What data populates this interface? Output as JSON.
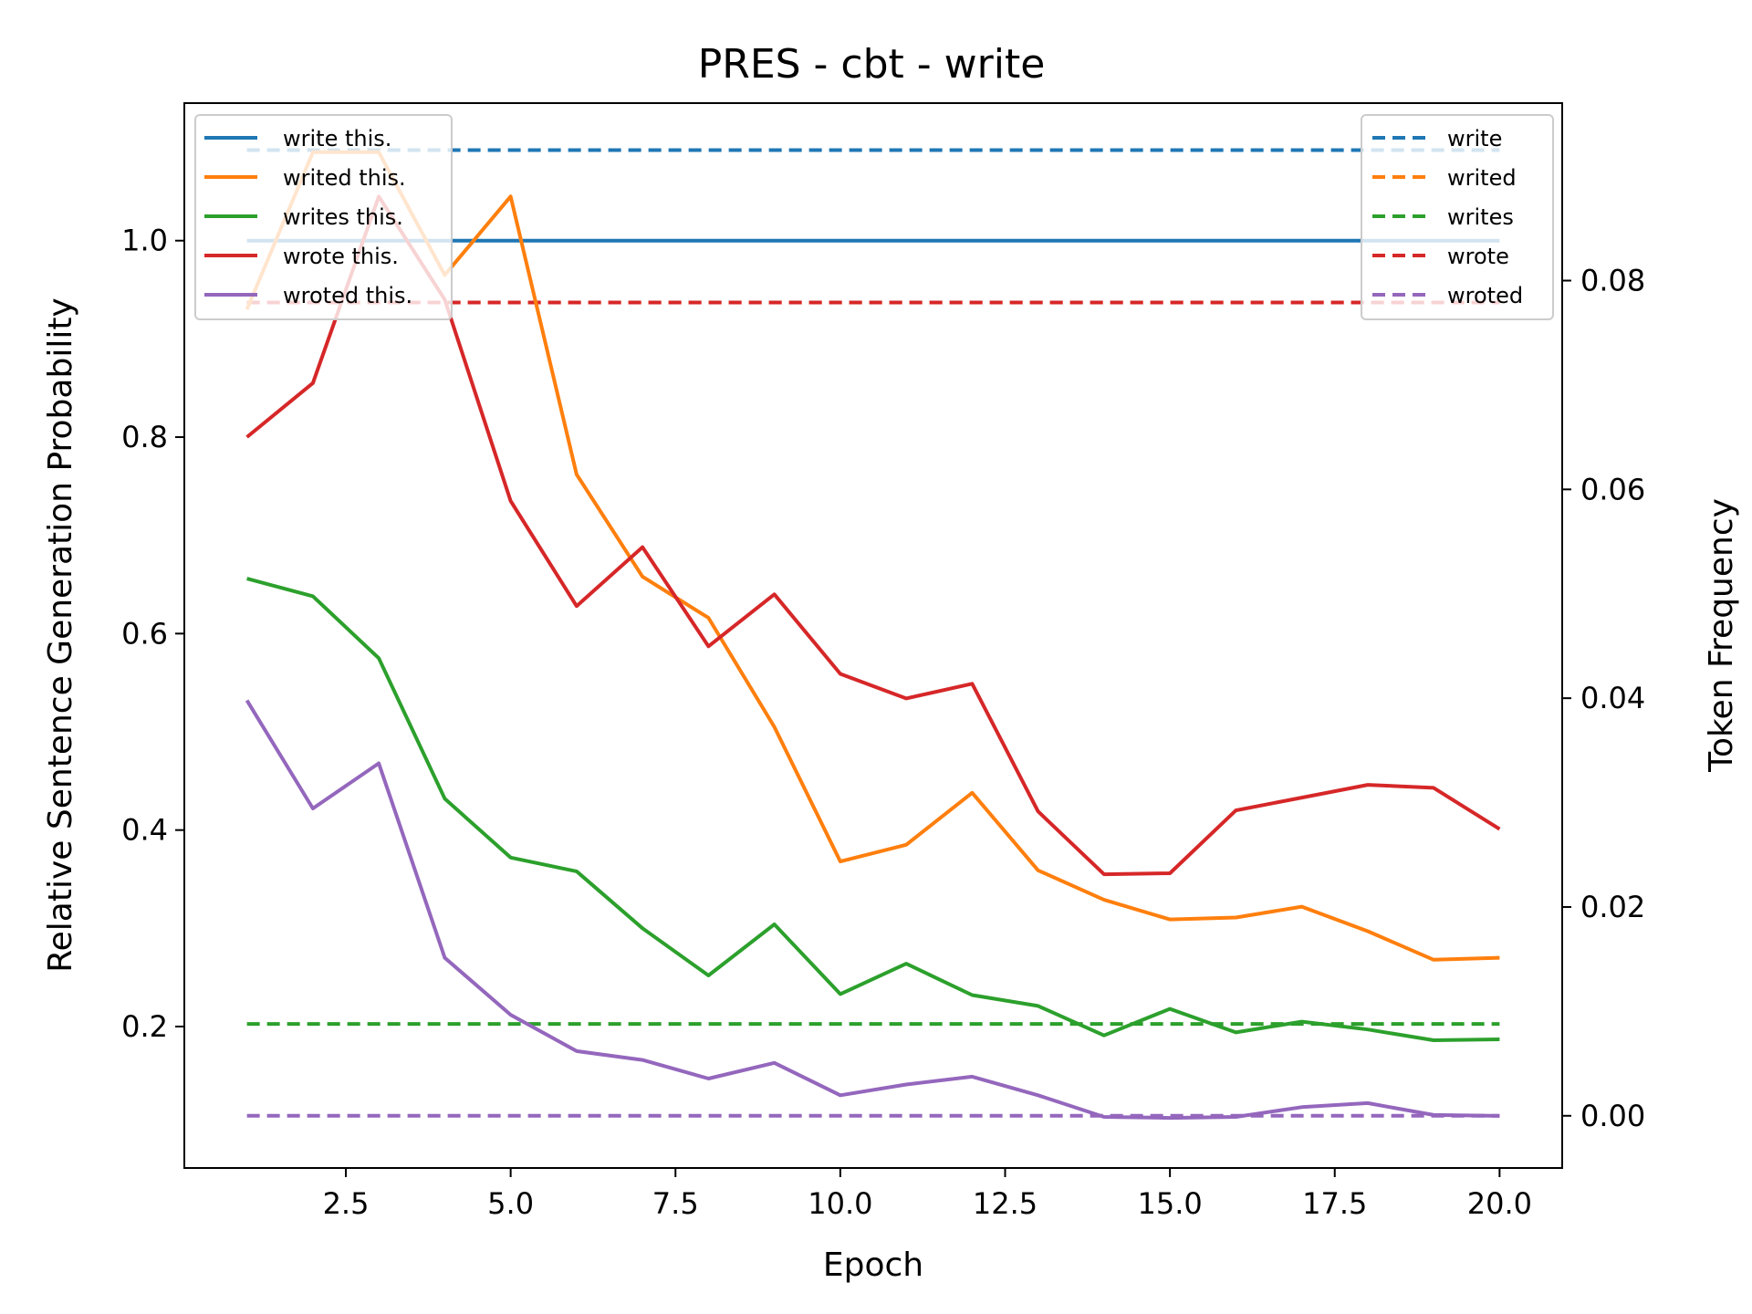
{
  "chart_data": {
    "type": "line",
    "title": "PRES - cbt - write",
    "xlabel": "Epoch",
    "ylabel": "Relative Sentence Generation Probability",
    "y2label": "Token Frequency",
    "xlim": [
      0.05,
      20.95
    ],
    "ylim": [
      0.056,
      1.14
    ],
    "y2lim": [
      -0.005,
      0.097
    ],
    "xticks": [
      {
        "v": 2.5,
        "label": "2.5"
      },
      {
        "v": 5.0,
        "label": "5.0"
      },
      {
        "v": 7.5,
        "label": "7.5"
      },
      {
        "v": 10.0,
        "label": "10.0"
      },
      {
        "v": 12.5,
        "label": "12.5"
      },
      {
        "v": 15.0,
        "label": "15.0"
      },
      {
        "v": 17.5,
        "label": "17.5"
      },
      {
        "v": 20.0,
        "label": "20.0"
      }
    ],
    "yticks": [
      {
        "v": 0.2,
        "label": "0.2"
      },
      {
        "v": 0.4,
        "label": "0.4"
      },
      {
        "v": 0.6,
        "label": "0.6"
      },
      {
        "v": 0.8,
        "label": "0.8"
      },
      {
        "v": 1.0,
        "label": "1.0"
      }
    ],
    "y2ticks": [
      {
        "v": 0.0,
        "label": "0.00"
      },
      {
        "v": 0.02,
        "label": "0.02"
      },
      {
        "v": 0.04,
        "label": "0.04"
      },
      {
        "v": 0.06,
        "label": "0.06"
      },
      {
        "v": 0.08,
        "label": "0.08"
      }
    ],
    "x": [
      1,
      2,
      3,
      4,
      5,
      6,
      7,
      8,
      9,
      10,
      11,
      12,
      13,
      14,
      15,
      16,
      17,
      18,
      19,
      20
    ],
    "series": [
      {
        "name": "write this.",
        "color": "#1f77b4",
        "values": [
          1.0,
          1.0,
          1.0,
          1.0,
          1.0,
          1.0,
          1.0,
          1.0,
          1.0,
          1.0,
          1.0,
          1.0,
          1.0,
          1.0,
          1.0,
          1.0,
          1.0,
          1.0,
          1.0,
          1.0
        ]
      },
      {
        "name": "writed this.",
        "color": "#ff7f0e",
        "values": [
          0.93,
          1.09,
          1.09,
          0.965,
          1.045,
          0.762,
          0.658,
          0.616,
          0.505,
          0.368,
          0.385,
          0.438,
          0.359,
          0.329,
          0.309,
          0.311,
          0.322,
          0.297,
          0.268,
          0.27
        ]
      },
      {
        "name": "writes this.",
        "color": "#2ca02c",
        "values": [
          0.656,
          0.638,
          0.575,
          0.432,
          0.372,
          0.358,
          0.3,
          0.252,
          0.304,
          0.233,
          0.264,
          0.232,
          0.221,
          0.191,
          0.218,
          0.194,
          0.205,
          0.197,
          0.186,
          0.187
        ]
      },
      {
        "name": "wrote this.",
        "color": "#d62728",
        "values": [
          0.8,
          0.855,
          1.045,
          0.94,
          0.735,
          0.628,
          0.688,
          0.587,
          0.64,
          0.559,
          0.534,
          0.549,
          0.419,
          0.355,
          0.356,
          0.42,
          0.433,
          0.446,
          0.443,
          0.401
        ]
      },
      {
        "name": "wroted this.",
        "color": "#9467bd",
        "values": [
          0.532,
          0.422,
          0.468,
          0.27,
          0.212,
          0.175,
          0.166,
          0.147,
          0.163,
          0.13,
          0.141,
          0.149,
          0.13,
          0.108,
          0.107,
          0.108,
          0.118,
          0.122,
          0.11,
          0.109
        ]
      }
    ],
    "token_frequency": [
      {
        "name": "write",
        "color": "#1f77b4",
        "value": 0.0925
      },
      {
        "name": "writed",
        "color": "#ff7f0e",
        "value": 0.0779
      },
      {
        "name": "writes",
        "color": "#2ca02c",
        "value": 0.0088
      },
      {
        "name": "wrote",
        "color": "#d62728",
        "value": 0.0779
      },
      {
        "name": "wroted",
        "color": "#9467bd",
        "value": 0.0
      }
    ],
    "token_frequency_x_range": [
      1,
      20
    ],
    "legend_left_position": "upper-left",
    "legend_right_position": "upper-right",
    "grid": false
  }
}
